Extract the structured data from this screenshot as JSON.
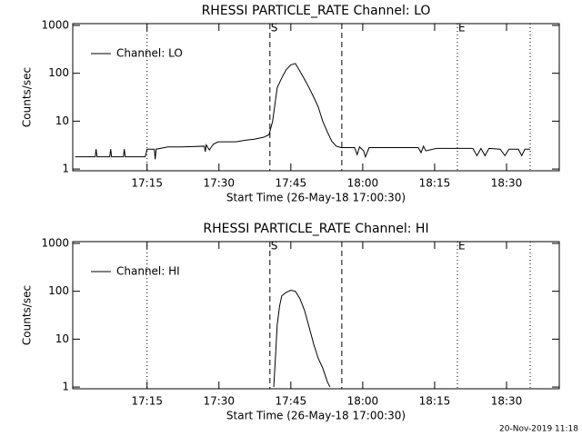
{
  "chart_data": [
    {
      "type": "line",
      "title": "RHESSI PARTICLE_RATE Channel: LO",
      "xlabel": "Start Time (26-May-18 17:00:30)",
      "ylabel": "Counts/sec",
      "log_y": true,
      "legend": "upper left",
      "xlim": [
        -60,
        6030
      ],
      "ylim": [
        0.92,
        1090
      ],
      "xticks": [
        {
          "value": 870,
          "label": "17:15"
        },
        {
          "value": 1770,
          "label": "17:30"
        },
        {
          "value": 2670,
          "label": "17:45"
        },
        {
          "value": 3570,
          "label": "18:00"
        },
        {
          "value": 4470,
          "label": "18:15"
        },
        {
          "value": 5370,
          "label": "18:30"
        }
      ],
      "yticks": [
        1,
        10,
        100,
        1000
      ],
      "vlines": [
        {
          "x": 870,
          "style": "dotted"
        },
        {
          "x": 2408,
          "style": "dashed"
        },
        {
          "x": 3308,
          "style": "dashed"
        },
        {
          "x": 4755,
          "style": "dotted"
        },
        {
          "x": 5666,
          "style": "dotted"
        }
      ],
      "annotations": [
        {
          "text": "S",
          "x": 2408
        },
        {
          "text": "E",
          "x": 4755
        }
      ],
      "x": [
        -30,
        221,
        232,
        244,
        403,
        415,
        426,
        574,
        585,
        597,
        847,
        870,
        961,
        972,
        984,
        1132,
        1303,
        1588,
        1599,
        1611,
        1650,
        1700,
        1758,
        1986,
        2100,
        2214,
        2328,
        2396,
        2442,
        2499,
        2556,
        2613,
        2670,
        2727,
        2784,
        2841,
        2898,
        2955,
        3012,
        3069,
        3126,
        3183,
        3240,
        3297,
        3468,
        3500,
        3530,
        3581,
        3604,
        3650,
        3809,
        3923,
        4264,
        4300,
        4330,
        4360,
        4492,
        4720,
        4948,
        5000,
        5050,
        5100,
        5150,
        5290,
        5350,
        5400,
        5518,
        5560,
        5600,
        5665
      ],
      "series": [
        {
          "name": "Channel: LO",
          "color": "#000000",
          "values": [
            1.8,
            1.8,
            2.6,
            1.8,
            1.8,
            2.6,
            1.8,
            1.8,
            2.6,
            1.8,
            1.8,
            2.6,
            2.6,
            1.6,
            2.6,
            2.9,
            2.9,
            3.0,
            2.3,
            3.2,
            2.5,
            3.3,
            3.7,
            3.7,
            4.0,
            4.2,
            4.6,
            5.2,
            10,
            50,
            80,
            120,
            150,
            160,
            110,
            75,
            50,
            32,
            20,
            10,
            6,
            3.8,
            3.0,
            2.8,
            2.8,
            2.0,
            2.9,
            2.4,
            1.8,
            2.8,
            2.8,
            2.8,
            2.8,
            2.2,
            3.0,
            2.4,
            2.7,
            2.7,
            2.7,
            1.9,
            2.7,
            1.9,
            2.7,
            2.6,
            1.9,
            2.6,
            2.6,
            1.9,
            2.6,
            2.6
          ]
        }
      ]
    },
    {
      "type": "line",
      "title": "RHESSI PARTICLE_RATE Channel: HI",
      "xlabel": "Start Time (26-May-18 17:00:30)",
      "ylabel": "Counts/sec",
      "log_y": true,
      "legend": "upper left",
      "xlim": [
        -60,
        6030
      ],
      "ylim": [
        0.92,
        1090
      ],
      "xticks": [
        {
          "value": 870,
          "label": "17:15"
        },
        {
          "value": 1770,
          "label": "17:30"
        },
        {
          "value": 2670,
          "label": "17:45"
        },
        {
          "value": 3570,
          "label": "18:00"
        },
        {
          "value": 4470,
          "label": "18:15"
        },
        {
          "value": 5370,
          "label": "18:30"
        }
      ],
      "yticks": [
        1,
        10,
        100,
        1000
      ],
      "vlines": [
        {
          "x": 870,
          "style": "dotted"
        },
        {
          "x": 2408,
          "style": "dashed"
        },
        {
          "x": 3308,
          "style": "dashed"
        },
        {
          "x": 4755,
          "style": "dotted"
        },
        {
          "x": 5666,
          "style": "dotted"
        }
      ],
      "annotations": [
        {
          "text": "S",
          "x": 2408
        },
        {
          "text": "E",
          "x": 4755
        }
      ],
      "x": [
        2456,
        2480,
        2499,
        2530,
        2556,
        2613,
        2670,
        2727,
        2784,
        2841,
        2898,
        2955,
        3012,
        3069,
        3126,
        3160
      ],
      "series": [
        {
          "name": "Channel: HI",
          "color": "#000000",
          "values": [
            1.0,
            5,
            20,
            50,
            80,
            95,
            105,
            100,
            70,
            40,
            18,
            8,
            4,
            2.5,
            1.3,
            1.0
          ]
        }
      ]
    }
  ],
  "footer": "20-Nov-2019 11:18"
}
